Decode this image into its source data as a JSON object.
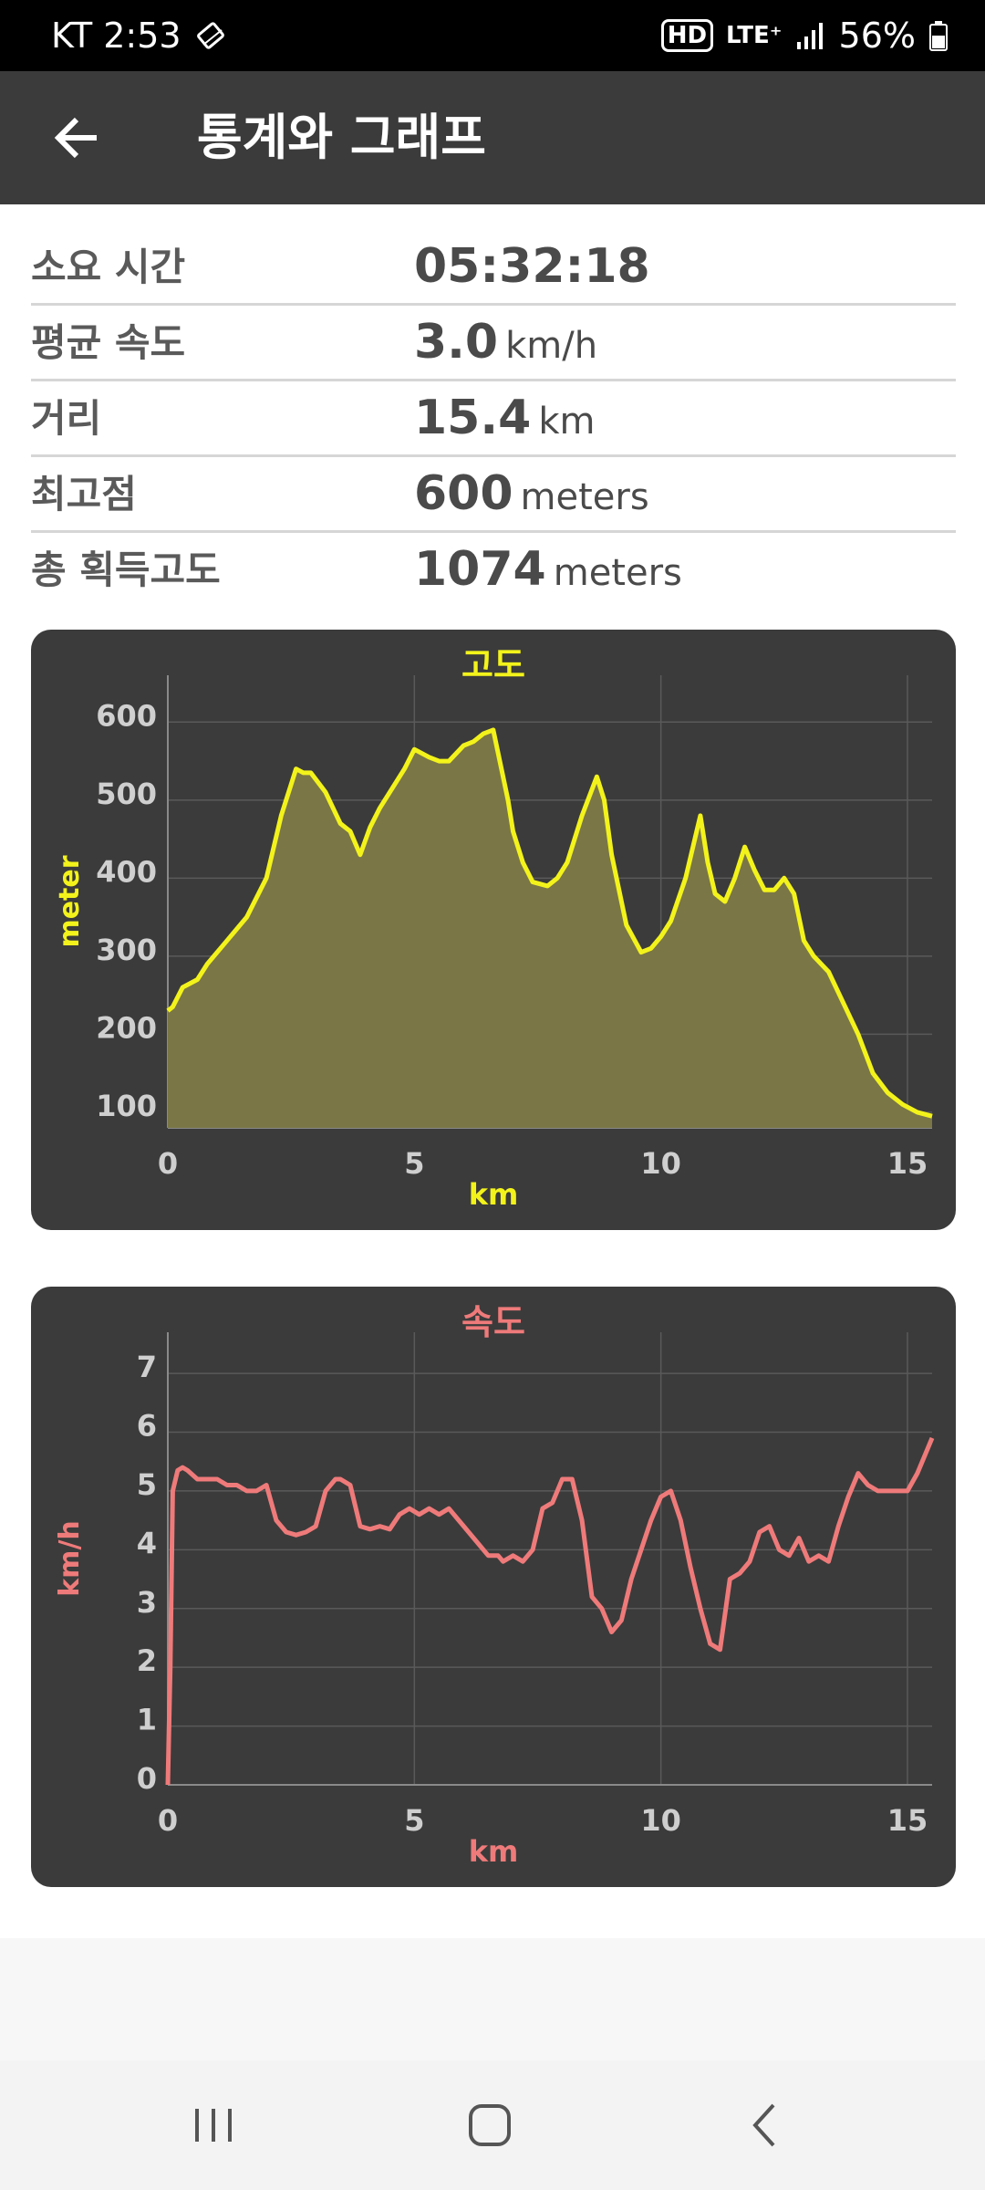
{
  "status_bar": {
    "carrier_time": "KT 2:53",
    "hd": "HD",
    "network": "LTE⁺",
    "battery": "56%"
  },
  "header": {
    "title": "통계와 그래프"
  },
  "stats": [
    {
      "label": "소요 시간",
      "value": "05:32:18",
      "unit": ""
    },
    {
      "label": "평균 속도",
      "value": "3.0",
      "unit": "km/h"
    },
    {
      "label": "거리",
      "value": "15.4",
      "unit": "km"
    },
    {
      "label": "최고점",
      "value": "600",
      "unit": "meters"
    },
    {
      "label": "총 획득고도",
      "value": "1074",
      "unit": "meters"
    }
  ],
  "colors": {
    "altitude": "#f3f31b",
    "speed": "#ef7a7a",
    "card": "#3b3b3b"
  },
  "chart_data": [
    {
      "type": "area",
      "title": "고도",
      "xlabel": "km",
      "ylabel": "meter",
      "xlim": [
        0,
        15.5
      ],
      "ylim": [
        80,
        660
      ],
      "xticks": [
        0,
        5,
        10,
        15
      ],
      "yticks": [
        100,
        200,
        300,
        400,
        500,
        600
      ],
      "grid": true,
      "x": [
        0,
        0.1,
        0.3,
        0.6,
        0.8,
        1.2,
        1.6,
        2.0,
        2.3,
        2.6,
        2.75,
        2.9,
        3.2,
        3.5,
        3.7,
        3.9,
        4.1,
        4.3,
        4.5,
        4.8,
        5.0,
        5.3,
        5.5,
        5.7,
        6.0,
        6.2,
        6.4,
        6.6,
        6.9,
        7.0,
        7.2,
        7.4,
        7.7,
        7.9,
        8.1,
        8.4,
        8.7,
        8.85,
        9.0,
        9.3,
        9.6,
        9.8,
        10.0,
        10.2,
        10.5,
        10.8,
        10.95,
        11.1,
        11.3,
        11.5,
        11.7,
        11.9,
        12.1,
        12.3,
        12.5,
        12.7,
        12.9,
        13.1,
        13.4,
        13.7,
        14.0,
        14.3,
        14.6,
        14.9,
        15.2,
        15.5
      ],
      "y": [
        230,
        235,
        260,
        270,
        290,
        320,
        350,
        400,
        480,
        540,
        535,
        535,
        510,
        470,
        460,
        430,
        465,
        490,
        510,
        540,
        565,
        555,
        550,
        550,
        570,
        575,
        585,
        590,
        500,
        460,
        420,
        395,
        390,
        400,
        420,
        480,
        530,
        500,
        430,
        340,
        305,
        310,
        325,
        345,
        400,
        480,
        420,
        380,
        370,
        400,
        440,
        410,
        385,
        385,
        400,
        380,
        320,
        300,
        280,
        240,
        200,
        150,
        125,
        110,
        100,
        95
      ]
    },
    {
      "type": "line",
      "title": "속도",
      "xlabel": "km",
      "ylabel": "km/h",
      "xlim": [
        0,
        15.5
      ],
      "ylim": [
        0,
        7.7
      ],
      "xticks": [
        0,
        5,
        10,
        15
      ],
      "yticks": [
        0,
        1,
        2,
        3,
        4,
        5,
        6,
        7
      ],
      "grid": true,
      "x": [
        0,
        0.05,
        0.1,
        0.2,
        0.3,
        0.4,
        0.6,
        0.8,
        1.0,
        1.2,
        1.4,
        1.6,
        1.8,
        2.0,
        2.2,
        2.4,
        2.6,
        2.8,
        3.0,
        3.2,
        3.4,
        3.5,
        3.7,
        3.9,
        4.1,
        4.3,
        4.5,
        4.7,
        4.9,
        5.1,
        5.3,
        5.5,
        5.7,
        5.9,
        6.1,
        6.3,
        6.5,
        6.7,
        6.8,
        7.0,
        7.2,
        7.4,
        7.6,
        7.8,
        8.0,
        8.2,
        8.4,
        8.6,
        8.8,
        9.0,
        9.2,
        9.4,
        9.6,
        9.8,
        10.0,
        10.2,
        10.4,
        10.6,
        10.8,
        11.0,
        11.2,
        11.4,
        11.6,
        11.8,
        12.0,
        12.2,
        12.4,
        12.6,
        12.8,
        13.0,
        13.2,
        13.4,
        13.6,
        13.8,
        14.0,
        14.2,
        14.4,
        14.6,
        14.8,
        15.0,
        15.2,
        15.5
      ],
      "y": [
        0,
        2.0,
        5.0,
        5.35,
        5.4,
        5.35,
        5.2,
        5.2,
        5.2,
        5.1,
        5.1,
        5.0,
        5.0,
        5.1,
        4.5,
        4.3,
        4.25,
        4.3,
        4.4,
        5.0,
        5.2,
        5.2,
        5.1,
        4.4,
        4.35,
        4.4,
        4.35,
        4.6,
        4.7,
        4.6,
        4.7,
        4.6,
        4.7,
        4.5,
        4.3,
        4.1,
        3.9,
        3.9,
        3.8,
        3.9,
        3.8,
        4.0,
        4.7,
        4.8,
        5.2,
        5.2,
        4.5,
        3.2,
        3.0,
        2.6,
        2.8,
        3.5,
        4.0,
        4.5,
        4.9,
        5.0,
        4.5,
        3.7,
        3.0,
        2.4,
        2.3,
        3.5,
        3.6,
        3.8,
        4.3,
        4.4,
        4.0,
        3.9,
        4.2,
        3.8,
        3.9,
        3.8,
        4.4,
        4.9,
        5.3,
        5.1,
        5.0,
        5.0,
        5.0,
        5.0,
        5.3,
        5.9
      ]
    }
  ]
}
